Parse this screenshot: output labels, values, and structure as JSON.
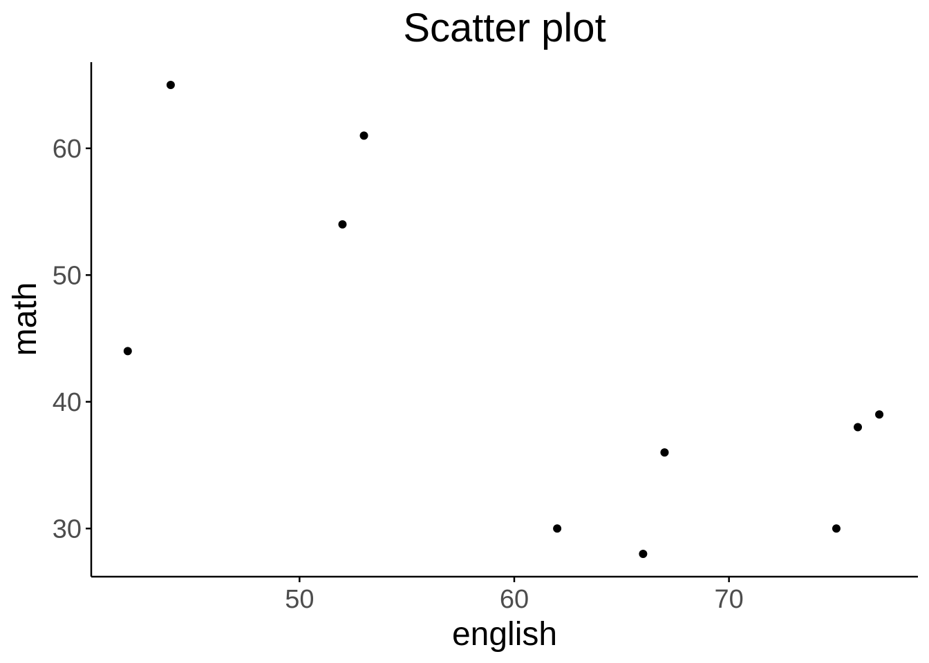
{
  "chart_data": {
    "type": "scatter",
    "title": "Scatter plot",
    "xlabel": "english",
    "ylabel": "math",
    "xlim": [
      40.3,
      78.8
    ],
    "ylim": [
      26.2,
      66.8
    ],
    "x_ticks": [
      50,
      60,
      70
    ],
    "y_ticks": [
      30,
      40,
      50,
      60
    ],
    "grid": false,
    "legend": "none",
    "point_color": "#000000",
    "series": [
      {
        "points": [
          {
            "x": 42,
            "y": 44
          },
          {
            "x": 44,
            "y": 65
          },
          {
            "x": 52,
            "y": 54
          },
          {
            "x": 53,
            "y": 61
          },
          {
            "x": 62,
            "y": 30
          },
          {
            "x": 66,
            "y": 28
          },
          {
            "x": 67,
            "y": 36
          },
          {
            "x": 75,
            "y": 30
          },
          {
            "x": 76,
            "y": 38
          },
          {
            "x": 77,
            "y": 39
          }
        ]
      }
    ]
  }
}
